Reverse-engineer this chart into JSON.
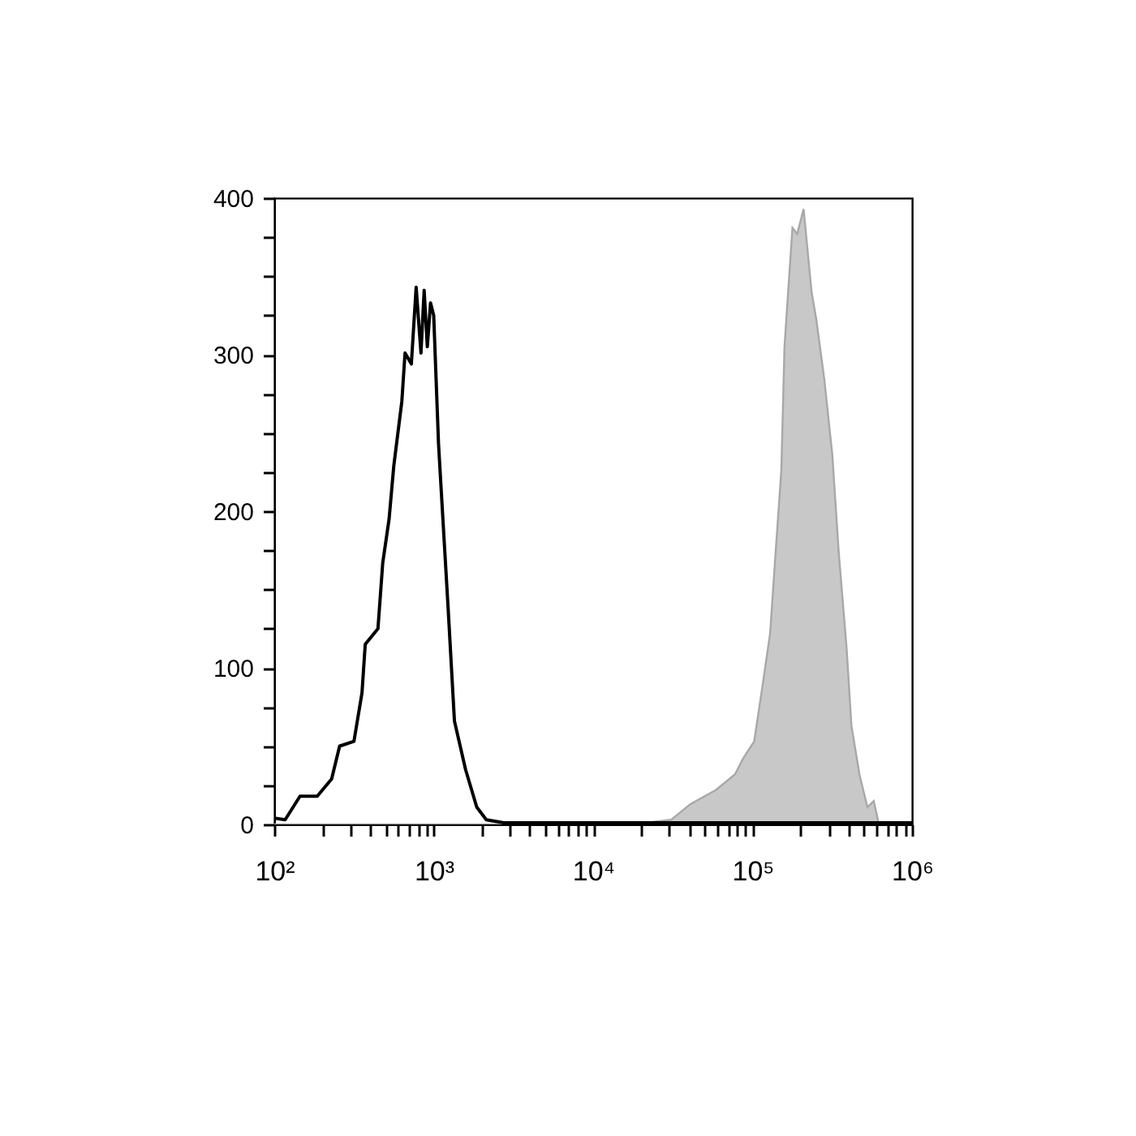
{
  "chart_data": {
    "type": "line",
    "log": "x",
    "grid": false,
    "xlim": [
      100,
      1000000
    ],
    "ylim": [
      0,
      400
    ],
    "xticks": [
      {
        "value": 100,
        "label": "10²"
      },
      {
        "value": 200,
        "label": null
      },
      {
        "value": 300,
        "label": null
      },
      {
        "value": 400,
        "label": null
      },
      {
        "value": 500,
        "label": null
      },
      {
        "value": 600,
        "label": null
      },
      {
        "value": 700,
        "label": null
      },
      {
        "value": 800,
        "label": null
      },
      {
        "value": 900,
        "label": null
      },
      {
        "value": 1000,
        "label": "10³"
      },
      {
        "value": 2000,
        "label": null
      },
      {
        "value": 3000,
        "label": null
      },
      {
        "value": 4000,
        "label": null
      },
      {
        "value": 5000,
        "label": null
      },
      {
        "value": 6000,
        "label": null
      },
      {
        "value": 7000,
        "label": null
      },
      {
        "value": 8000,
        "label": null
      },
      {
        "value": 9000,
        "label": null
      },
      {
        "value": 10000,
        "label": "10⁴"
      },
      {
        "value": 20000,
        "label": null
      },
      {
        "value": 30000,
        "label": null
      },
      {
        "value": 40000,
        "label": null
      },
      {
        "value": 50000,
        "label": null
      },
      {
        "value": 60000,
        "label": null
      },
      {
        "value": 70000,
        "label": null
      },
      {
        "value": 80000,
        "label": null
      },
      {
        "value": 90000,
        "label": null
      },
      {
        "value": 100000,
        "label": "10⁵"
      },
      {
        "value": 200000,
        "label": null
      },
      {
        "value": 300000,
        "label": null
      },
      {
        "value": 400000,
        "label": null
      },
      {
        "value": 500000,
        "label": null
      },
      {
        "value": 600000,
        "label": null
      },
      {
        "value": 700000,
        "label": null
      },
      {
        "value": 800000,
        "label": null
      },
      {
        "value": 900000,
        "label": null
      },
      {
        "value": 1000000,
        "label": "10⁶"
      }
    ],
    "yticks": [
      0,
      {
        "value": 25,
        "label": null
      },
      {
        "value": 50,
        "label": null
      },
      {
        "value": 75,
        "label": null
      },
      100,
      {
        "value": 125,
        "label": null
      },
      {
        "value": 150,
        "label": null
      },
      {
        "value": 175,
        "label": null
      },
      200,
      {
        "value": 225,
        "label": null
      },
      {
        "value": 250,
        "label": null
      },
      {
        "value": 275,
        "label": null
      },
      300,
      {
        "value": 325,
        "label": null
      },
      {
        "value": 350,
        "label": null
      },
      {
        "value": 375,
        "label": null
      },
      400
    ],
    "series": [
      {
        "type": "area",
        "color": "#c8c8c8",
        "x": [
          100,
          9550,
          20890,
          30900,
          40740,
          58880,
          77620,
          87100,
          102300,
          114800,
          128800,
          138000,
          151400,
          158500,
          177800,
          190500,
          208900,
          234400,
          251200,
          281800,
          316200,
          346700,
          389000,
          416900,
          467700,
          524800,
          575400,
          616600,
          1000000
        ],
        "values": [
          0,
          0,
          1,
          3,
          13,
          22,
          32,
          42,
          53,
          87,
          122,
          167,
          226,
          305,
          381,
          377,
          393,
          340,
          322,
          284,
          236,
          174,
          112,
          63,
          32,
          11,
          15,
          1,
          0
        ]
      },
      {
        "color": "#000000",
        "x": [
          100,
          117,
          145,
          186,
          229,
          257,
          316,
          355,
          372,
          447,
          479,
          525,
          562,
          631,
          661,
          724,
          776,
          832,
          871,
          912,
          955,
          1000,
          1072,
          1148,
          1230,
          1349,
          1585,
          1862,
          2138,
          2754,
          10000,
          1000000
        ],
        "values": [
          4,
          3,
          18,
          18,
          29,
          50,
          53,
          84,
          115,
          125,
          167,
          195,
          229,
          270,
          301,
          294,
          343,
          301,
          341,
          305,
          333,
          325,
          243,
          191,
          139,
          66,
          35,
          11,
          3,
          1,
          1,
          1
        ]
      }
    ]
  }
}
